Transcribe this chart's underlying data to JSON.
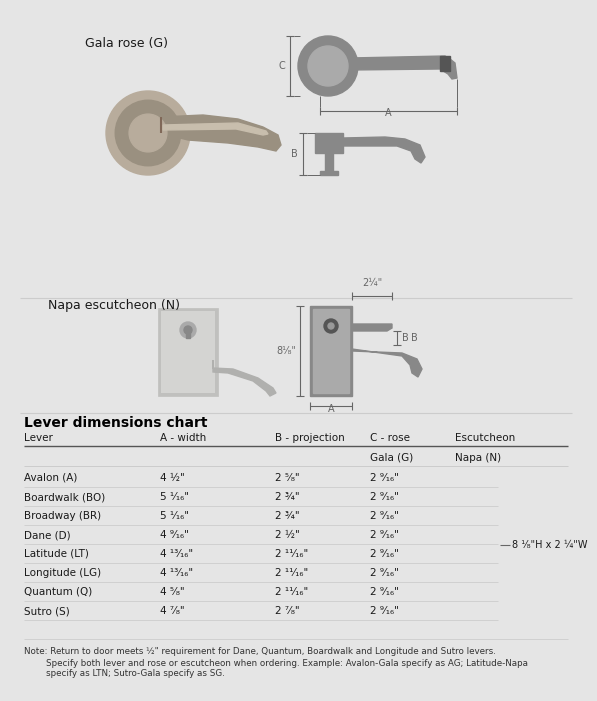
{
  "bg_color": "#e5e5e5",
  "white_panel": "#ffffff",
  "table_title": "Lever dimensions chart",
  "col_headers": [
    "Lever",
    "A - width",
    "B - projection",
    "C - rose",
    "Escutcheon"
  ],
  "sub_headers": [
    "",
    "",
    "",
    "Gala (G)",
    "Napa (N)"
  ],
  "rows": [
    [
      "Avalon (A)",
      "4 ½\"",
      "2 ⁵⁄₈\"",
      "2 ⁹⁄₁₆\"",
      ""
    ],
    [
      "Boardwalk (BO)",
      "5 ¹⁄₁₆\"",
      "2 ¾\"",
      "2 ⁹⁄₁₆\"",
      ""
    ],
    [
      "Broadway (BR)",
      "5 ¹⁄₁₆\"",
      "2 ¾\"",
      "2 ⁹⁄₁₆\"",
      ""
    ],
    [
      "Dane (D)",
      "4 ⁹⁄₁₆\"",
      "2 ½\"",
      "2 ⁹⁄₁₆\"",
      ""
    ],
    [
      "Latitude (LT)",
      "4 ¹³⁄₁₆\"",
      "2 ¹¹⁄₁₆\"",
      "2 ⁹⁄₁₆\"",
      ""
    ],
    [
      "Longitude (LG)",
      "4 ¹³⁄₁₆\"",
      "2 ¹¹⁄₁₆\"",
      "2 ⁹⁄₁₆\"",
      ""
    ],
    [
      "Quantum (Q)",
      "4 ⁵⁄₈\"",
      "2 ¹¹⁄₁₆\"",
      "2 ⁹⁄₁₆\"",
      ""
    ],
    [
      "Sutro (S)",
      "4 ⁷⁄₈\"",
      "2 ⁷⁄₈\"",
      "2 ⁹⁄₁₆\"",
      ""
    ]
  ],
  "escutcheon_label": "8 ¹⁄₈\"H x 2 ¼\"W",
  "gala_label": "Gala rose (G)",
  "napa_label": "Napa escutcheon (N)",
  "note_line1": "Note: Return to door meets ½\" requirement for Dane, Quantum, Boardwalk and Longitude and Sutro levers.",
  "note_line2": "        Specify both lever and rose or escutcheon when ordering. Example: Avalon-Gala specify as AG; Latitude-Napa",
  "note_line3": "        specify as LTN; Sutro-Gala specify as SG.",
  "dim_color": "#666666",
  "diagram_fill": "#888888",
  "diagram_fill2": "#aaaaaa",
  "photo_fill_dark": "#9a9080",
  "photo_fill_mid": "#b8ac9c",
  "photo_fill_light": "#c8bead",
  "napa_fill": "#c0c0be",
  "napa_fill2": "#d4d4d2",
  "sep_color": "#cccccc",
  "text_dark": "#1a1a1a",
  "text_mid": "#333333",
  "header_line": "#555555",
  "row_line": "#cccccc"
}
